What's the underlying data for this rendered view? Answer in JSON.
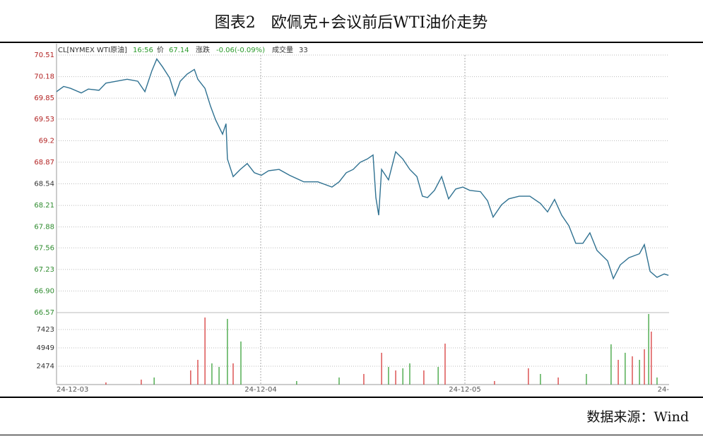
{
  "chart_data": {
    "type": "line",
    "title": "图表2　欧佩克+会议前后WTI油价走势",
    "source": "数据来源：Wind",
    "info": {
      "time": "16:56",
      "price_label": "价",
      "price": "67.14",
      "change_label": "涨跌",
      "change": "-0.06(-0.09%)",
      "volume_label": "成交量",
      "volume": "33"
    },
    "series": [
      {
        "name": "CL[NYMEX WTI原油]",
        "color": "#2f7191",
        "x": [
          0,
          0.035,
          0.069,
          0.121,
          0.156,
          0.208,
          0.242,
          0.294,
          0.346,
          0.398,
          0.433,
          0.467,
          0.491,
          0.519,
          0.554,
          0.581,
          0.606,
          0.64,
          0.675,
          0.692,
          0.727,
          0.754,
          0.779,
          0.813,
          0.83,
          0.837,
          0.865,
          0.9,
          0.934,
          0.969,
          1.003,
          1.038,
          1.09,
          1.142,
          1.211,
          1.28,
          1.349,
          1.384,
          1.419,
          1.453,
          1.488,
          1.522,
          1.55,
          1.564,
          1.578,
          1.592,
          1.626,
          1.661,
          1.696,
          1.73,
          1.765,
          1.792,
          1.817,
          1.851,
          1.886,
          1.92,
          1.955,
          1.99,
          2.024,
          2.076,
          2.111,
          2.138,
          2.18,
          2.215,
          2.266,
          2.318,
          2.37,
          2.405,
          2.439,
          2.474,
          2.509,
          2.543,
          2.578,
          2.612,
          2.647,
          2.699,
          2.727,
          2.761,
          2.803,
          2.855,
          2.879,
          2.907,
          2.941,
          2.976,
          2.997
        ],
        "values": [
          69.95,
          70.03,
          70.0,
          69.93,
          69.99,
          69.97,
          70.08,
          70.11,
          70.14,
          70.11,
          69.95,
          70.27,
          70.45,
          70.33,
          70.16,
          69.89,
          70.11,
          70.22,
          70.29,
          70.14,
          70.0,
          69.73,
          69.52,
          69.3,
          69.46,
          68.92,
          68.65,
          68.76,
          68.85,
          68.71,
          68.67,
          68.74,
          68.76,
          68.67,
          68.57,
          68.57,
          68.49,
          68.57,
          68.71,
          68.76,
          68.87,
          68.92,
          68.98,
          68.33,
          68.06,
          68.76,
          68.6,
          69.03,
          68.92,
          68.76,
          68.65,
          68.35,
          68.33,
          68.44,
          68.65,
          68.31,
          68.46,
          68.49,
          68.44,
          68.42,
          68.28,
          68.03,
          68.22,
          68.31,
          68.35,
          68.35,
          68.24,
          68.11,
          68.3,
          68.06,
          67.9,
          67.63,
          67.63,
          67.79,
          67.52,
          67.36,
          67.09,
          67.3,
          67.41,
          67.47,
          67.61,
          67.2,
          67.11,
          67.16,
          67.14
        ]
      }
    ],
    "xlim": [
      0,
      3
    ],
    "xticks": [
      {
        "value": 0,
        "label": "24-12-03"
      },
      {
        "value": 1,
        "label": "24-12-04"
      },
      {
        "value": 2,
        "label": "24-12-05"
      },
      {
        "value": 3,
        "label": "24-"
      }
    ],
    "ylim": [
      66.57,
      70.51
    ],
    "yticks": [
      70.51,
      70.18,
      69.85,
      69.53,
      69.2,
      {
        "value": 68.87,
        "label": "68.87"
      },
      68.54,
      68.21,
      67.88,
      67.56,
      67.23,
      {
        "value": 66.9,
        "label": "66.90"
      },
      66.57
    ],
    "ytick_colors": [
      "#b22222",
      "#b22222",
      "#b22222",
      "#b22222",
      "#b22222",
      "#b22222",
      "#333333",
      "#2e8b2e",
      "#2e8b2e",
      "#2e8b2e",
      "#2e8b2e",
      "#2e8b2e",
      "#2e8b2e"
    ],
    "grid": true,
    "volume": {
      "x": [
        0.727,
        0.837,
        0.903,
        0.692,
        0.761,
        0.796,
        0.657,
        0.865,
        0.478,
        0.415,
        1.592,
        1.626,
        1.661,
        1.696,
        1.73,
        1.903,
        1.799,
        1.869,
        1.505,
        1.384,
        2.311,
        2.37,
        2.457,
        2.595,
        2.716,
        2.751,
        2.785,
        2.82,
        2.855,
        2.879,
        2.9,
        2.913,
        2.941,
        0.242,
        1.176,
        2.145
      ],
      "values": [
        9044,
        8854,
        5807,
        3332,
        2856,
        2380,
        1904,
        2856,
        952,
        666,
        4284,
        2380,
        1904,
        2190,
        2856,
        5522,
        1904,
        2380,
        1428,
        952,
        2190,
        1428,
        952,
        1428,
        5426,
        3332,
        4284,
        3808,
        3332,
        4760,
        9520,
        7140,
        952,
        286,
        476,
        476
      ],
      "colors": [
        "#d42a2a",
        "#2a9a2a",
        "#2a9a2a",
        "#d42a2a",
        "#2a9a2a",
        "#2a9a2a",
        "#d42a2a",
        "#d42a2a",
        "#2a9a2a",
        "#d42a2a",
        "#d42a2a",
        "#2a9a2a",
        "#d42a2a",
        "#2a9a2a",
        "#2a9a2a",
        "#d42a2a",
        "#d42a2a",
        "#2a9a2a",
        "#d42a2a",
        "#2a9a2a",
        "#d42a2a",
        "#2a9a2a",
        "#d42a2a",
        "#2a9a2a",
        "#2a9a2a",
        "#d42a2a",
        "#2a9a2a",
        "#d42a2a",
        "#2a9a2a",
        "#d42a2a",
        "#2a9a2a",
        "#d42a2a",
        "#2a9a2a",
        "#d42a2a",
        "#2a9a2a",
        "#d42a2a"
      ],
      "ylim": [
        0,
        9706
      ],
      "yticks": [
        2474,
        4949,
        7423
      ]
    }
  }
}
